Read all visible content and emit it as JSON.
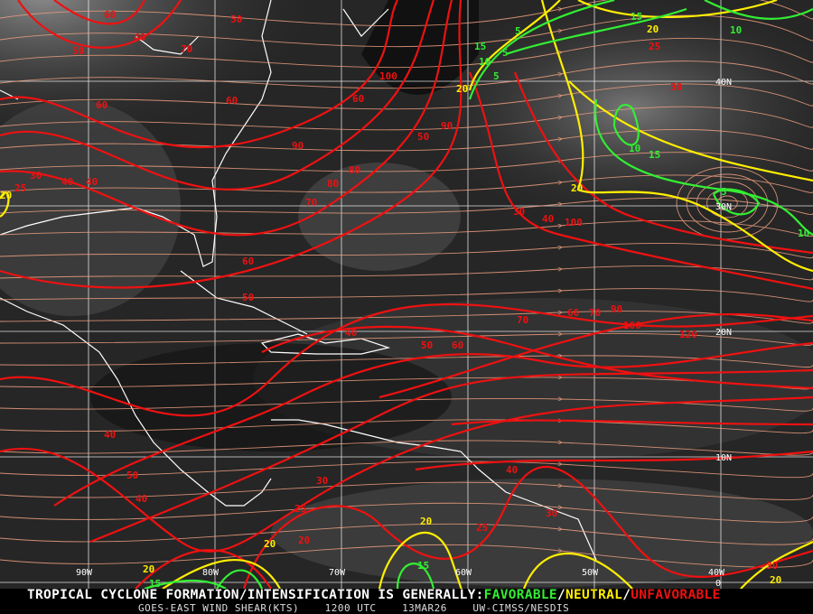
{
  "footer": {
    "headline_prefix": "TROPICAL CYCLONE FORMATION/INTENSIFICATION IS GENERALLY:",
    "favorable": "FAVORABLE",
    "sep1": "/",
    "neutral": "NEUTRAL",
    "sep2": "/",
    "unfavorable": "UNFAVORABLE",
    "product": "GOES-EAST WIND SHEAR(KTS)",
    "time": "1200 UTC",
    "date": "13MAR26",
    "source": "UW-CIMSS/NESDIS"
  },
  "colors": {
    "favorable": "#33ee33",
    "neutral": "#ffee00",
    "unfavorable": "#ee1111",
    "streamline": "#f0a080",
    "coastline": "#ffffff",
    "grid": "#ffffff"
  },
  "grid": {
    "latitudes": [
      "40N",
      "30N",
      "20N",
      "10N",
      "0"
    ],
    "longitudes": [
      "90W",
      "80W",
      "70W",
      "60W",
      "50W",
      "40W"
    ]
  },
  "contour_labels": [
    "60",
    "50",
    "40",
    "50",
    "70",
    "40",
    "100",
    "60",
    "90",
    "60",
    "60",
    "30",
    "25",
    "40",
    "90",
    "80",
    "50",
    "70",
    "60",
    "50",
    "40",
    "70",
    "60",
    "50",
    "60",
    "70",
    "80",
    "90",
    "100",
    "120",
    "40",
    "30",
    "40",
    "50",
    "40",
    "30",
    "25",
    "20",
    "25",
    "20",
    "20",
    "15",
    "20",
    "15",
    "5",
    "15",
    "20",
    "25",
    "15",
    "5",
    "5",
    "10",
    "20",
    "30",
    "20",
    "10",
    "15",
    "30",
    "40",
    "100",
    "5",
    "10",
    "10",
    "30",
    "20",
    "20"
  ]
}
